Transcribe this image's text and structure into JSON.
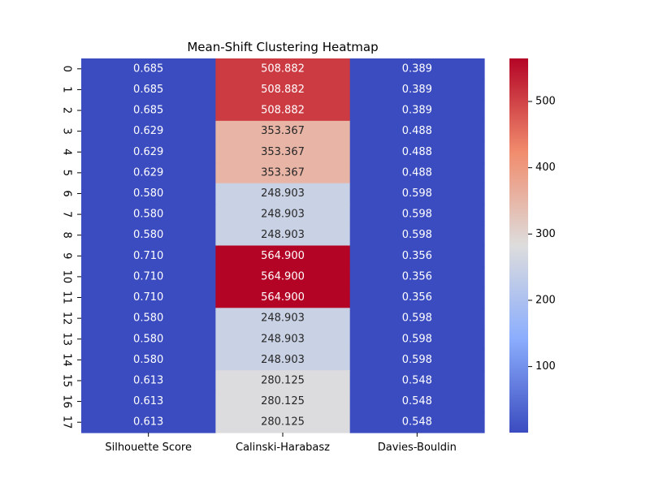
{
  "chart_data": {
    "type": "heatmap",
    "title": "Mean-Shift Clustering Heatmap",
    "xlabel": "",
    "ylabel": "",
    "columns": [
      "Silhouette Score",
      "Calinski-Harabasz",
      "Davies-Bouldin"
    ],
    "rows": [
      "0",
      "1",
      "2",
      "3",
      "4",
      "5",
      "6",
      "7",
      "8",
      "9",
      "10",
      "11",
      "12",
      "13",
      "14",
      "15",
      "16",
      "17"
    ],
    "values": [
      [
        0.685,
        508.882,
        0.389
      ],
      [
        0.685,
        508.882,
        0.389
      ],
      [
        0.685,
        508.882,
        0.389
      ],
      [
        0.629,
        353.367,
        0.488
      ],
      [
        0.629,
        353.367,
        0.488
      ],
      [
        0.629,
        353.367,
        0.488
      ],
      [
        0.58,
        248.903,
        0.598
      ],
      [
        0.58,
        248.903,
        0.598
      ],
      [
        0.58,
        248.903,
        0.598
      ],
      [
        0.71,
        564.9,
        0.356
      ],
      [
        0.71,
        564.9,
        0.356
      ],
      [
        0.71,
        564.9,
        0.356
      ],
      [
        0.58,
        248.903,
        0.598
      ],
      [
        0.58,
        248.903,
        0.598
      ],
      [
        0.58,
        248.903,
        0.598
      ],
      [
        0.613,
        280.125,
        0.548
      ],
      [
        0.613,
        280.125,
        0.548
      ],
      [
        0.613,
        280.125,
        0.548
      ]
    ],
    "colorbar": {
      "colormap": "coolwarm",
      "range": [
        0.356,
        564.9
      ],
      "ticks": [
        100,
        200,
        300,
        400,
        500
      ]
    },
    "value_format_decimals": 3
  }
}
